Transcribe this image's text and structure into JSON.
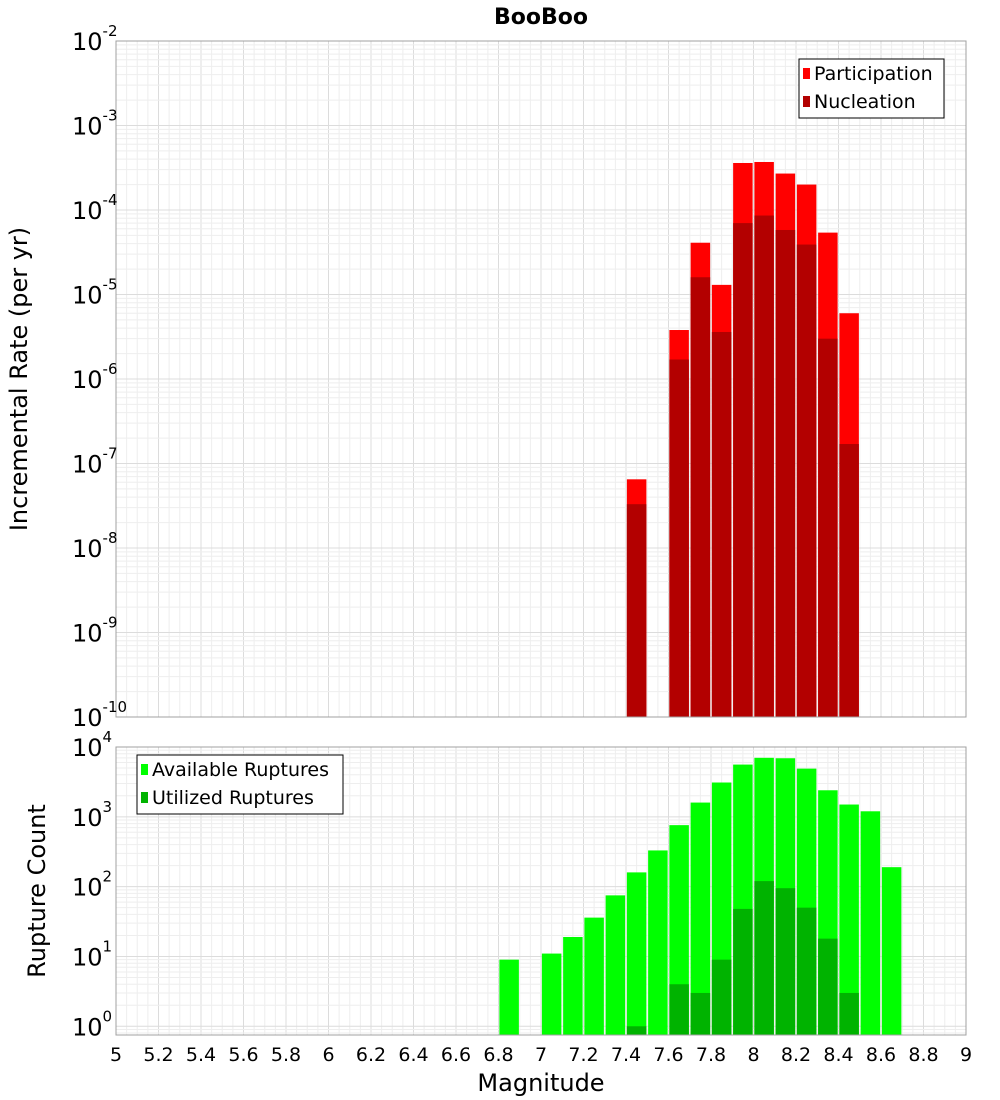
{
  "chart_data": [
    {
      "type": "bar",
      "title": "BooBoo",
      "xlabel": "",
      "ylabel": "Incremental Rate (per yr)",
      "yscale": "log",
      "ylim": [
        1e-10,
        0.01
      ],
      "y_ticks": [
        {
          "base": "10",
          "exp": "-10"
        },
        {
          "base": "10",
          "exp": "-9"
        },
        {
          "base": "10",
          "exp": "-8"
        },
        {
          "base": "10",
          "exp": "-7"
        },
        {
          "base": "10",
          "exp": "-6"
        },
        {
          "base": "10",
          "exp": "-5"
        },
        {
          "base": "10",
          "exp": "-4"
        },
        {
          "base": "10",
          "exp": "-3"
        },
        {
          "base": "10",
          "exp": "-2"
        }
      ],
      "xlim": [
        5,
        9
      ],
      "grid": true,
      "legend_position": "top-right",
      "bar_style": "overlay",
      "colors": {
        "Participation": "#ff0000",
        "Nucleation": "#b30000"
      },
      "series": [
        {
          "name": "Participation",
          "x": [
            7.45,
            7.65,
            7.75,
            7.85,
            7.95,
            8.05,
            8.15,
            8.25,
            8.35,
            8.45
          ],
          "values": [
            6.5e-08,
            3.8e-06,
            4.1e-05,
            1.3e-05,
            0.00036,
            0.00037,
            0.00027,
            0.0002,
            5.4e-05,
            6e-06
          ]
        },
        {
          "name": "Nucleation",
          "x": [
            7.45,
            7.65,
            7.75,
            7.85,
            7.95,
            8.05,
            8.15,
            8.25,
            8.35,
            8.45
          ],
          "values": [
            3.3e-08,
            1.7e-06,
            1.6e-05,
            3.6e-06,
            7e-05,
            8.6e-05,
            5.8e-05,
            3.9e-05,
            3e-06,
            1.7e-07
          ]
        }
      ]
    },
    {
      "type": "bar",
      "title": "",
      "xlabel": "Magnitude",
      "ylabel": "Rupture Count",
      "yscale": "log",
      "ylim": [
        0.75,
        10000
      ],
      "y_ticks": [
        {
          "base": "10",
          "exp": "0"
        },
        {
          "base": "10",
          "exp": "1"
        },
        {
          "base": "10",
          "exp": "2"
        },
        {
          "base": "10",
          "exp": "3"
        },
        {
          "base": "10",
          "exp": "4"
        }
      ],
      "xlim": [
        5,
        9
      ],
      "x_ticks": [
        "5",
        "5.2",
        "5.4",
        "5.6",
        "5.8",
        "6",
        "6.2",
        "6.4",
        "6.6",
        "6.8",
        "7",
        "7.2",
        "7.4",
        "7.6",
        "7.8",
        "8",
        "8.2",
        "8.4",
        "8.6",
        "8.8",
        "9"
      ],
      "grid": true,
      "legend_position": "top-left",
      "bar_style": "overlay",
      "colors": {
        "Available Ruptures": "#00ff00",
        "Utilized Ruptures": "#00b300"
      },
      "series": [
        {
          "name": "Available Ruptures",
          "x": [
            6.85,
            7.05,
            7.15,
            7.25,
            7.35,
            7.45,
            7.55,
            7.65,
            7.75,
            7.85,
            7.95,
            8.05,
            8.15,
            8.25,
            8.35,
            8.45,
            8.55,
            8.65
          ],
          "values": [
            9,
            11,
            19,
            36,
            75,
            160,
            330,
            760,
            1600,
            3100,
            5600,
            7000,
            6900,
            4900,
            2400,
            1500,
            1200,
            190
          ]
        },
        {
          "name": "Utilized Ruptures",
          "x": [
            7.45,
            7.65,
            7.75,
            7.85,
            7.95,
            8.05,
            8.15,
            8.25,
            8.35,
            8.45
          ],
          "values": [
            1,
            4,
            3,
            9,
            48,
            120,
            95,
            50,
            18,
            3
          ]
        }
      ]
    }
  ]
}
